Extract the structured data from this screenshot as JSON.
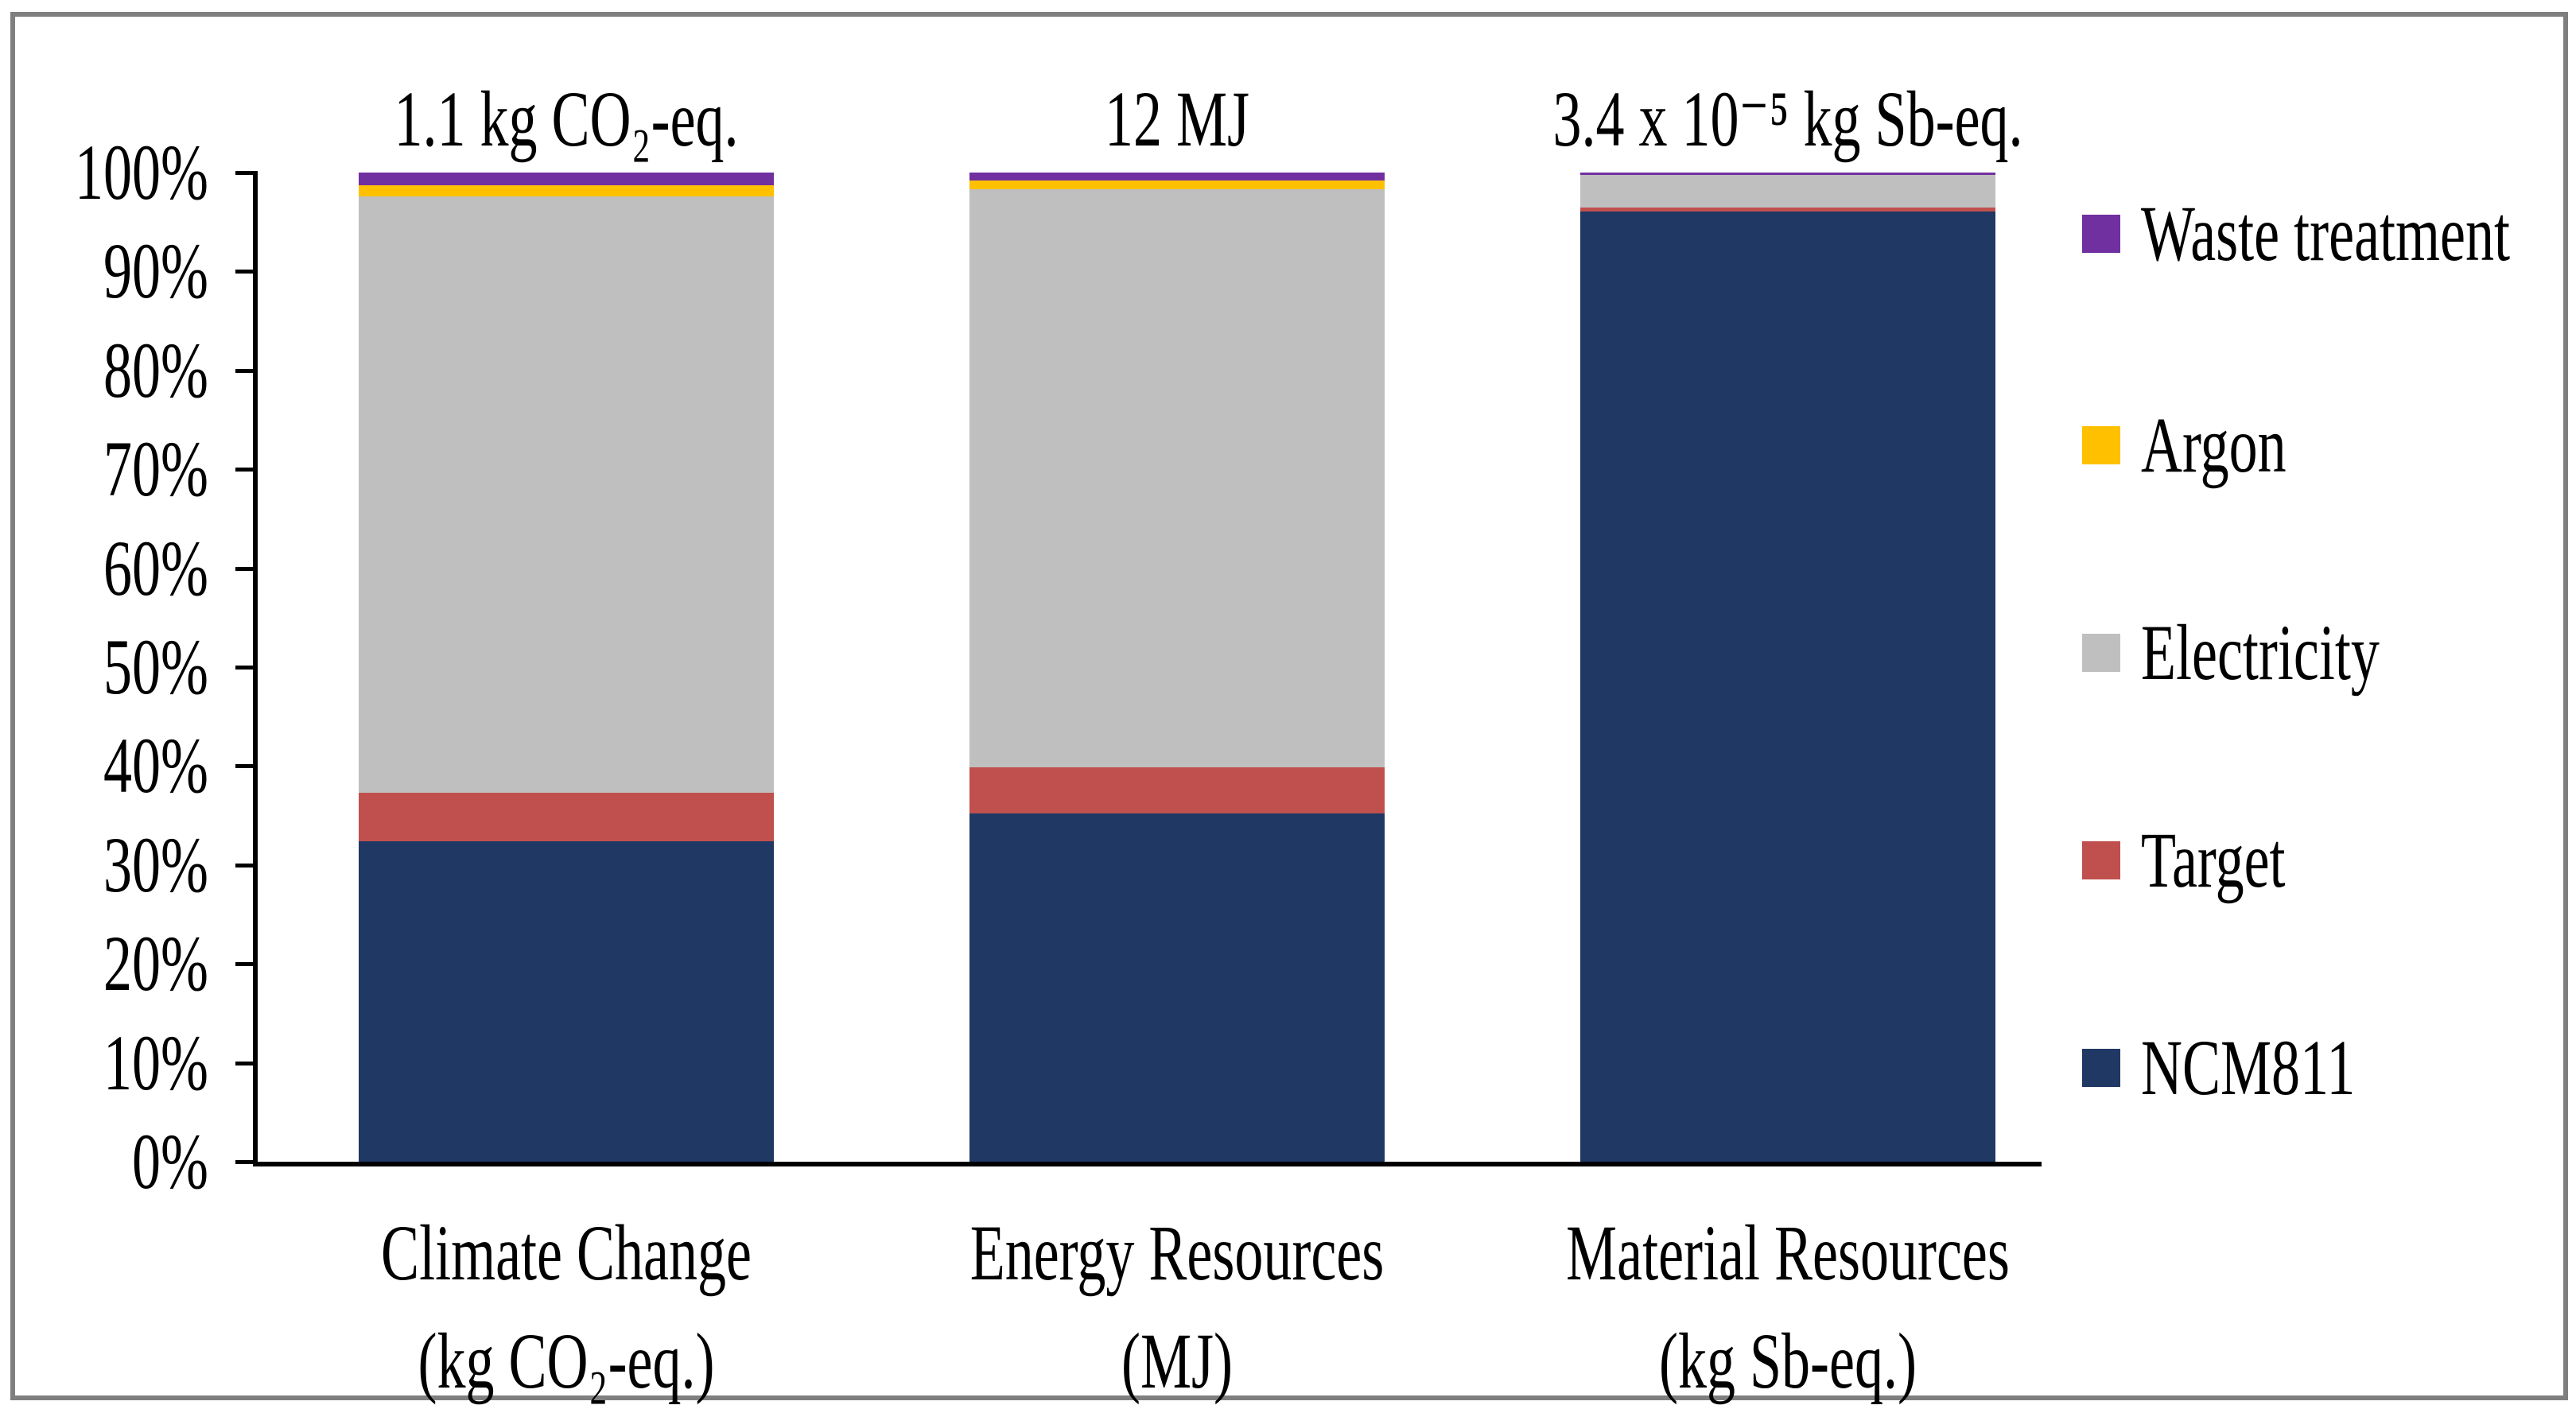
{
  "chart_data": {
    "type": "bar",
    "variant": "100-percent-stacked-column",
    "grid": "off",
    "legend_position": "right",
    "categories": [
      {
        "label": "Climate Change",
        "unit": "(kg CO₂-eq.)",
        "total_annotation": "1.1 kg CO₂-eq."
      },
      {
        "label": "Energy Resources",
        "unit": "(MJ)",
        "total_annotation": "12 MJ"
      },
      {
        "label": "Material Resources",
        "unit": "(kg Sb-eq.)",
        "total_annotation": "3.4 x 10⁻⁵ kg Sb-eq."
      }
    ],
    "series": [
      {
        "name": "NCM811",
        "color": "#1F3864",
        "values": [
          32.4,
          35.2,
          96.1
        ]
      },
      {
        "name": "Target",
        "color": "#C0504D",
        "values": [
          4.9,
          4.7,
          0.4
        ]
      },
      {
        "name": "Electricity",
        "color": "#BFBFBF",
        "values": [
          60.3,
          58.4,
          3.3
        ]
      },
      {
        "name": "Argon",
        "color": "#FFC000",
        "values": [
          1.1,
          0.9,
          0.0
        ]
      },
      {
        "name": "Waste treatment",
        "color": "#7030A0",
        "values": [
          1.3,
          0.8,
          0.2
        ]
      }
    ],
    "legend_order": [
      "Waste treatment",
      "Argon",
      "Electricity",
      "Target",
      "NCM811"
    ],
    "y_axis": {
      "min": 0,
      "max": 100,
      "ticks": [
        "0%",
        "10%",
        "20%",
        "30%",
        "40%",
        "50%",
        "60%",
        "70%",
        "80%",
        "90%",
        "100%"
      ]
    },
    "frame_color": "#7F7F7F",
    "axis_color": "#000000"
  }
}
